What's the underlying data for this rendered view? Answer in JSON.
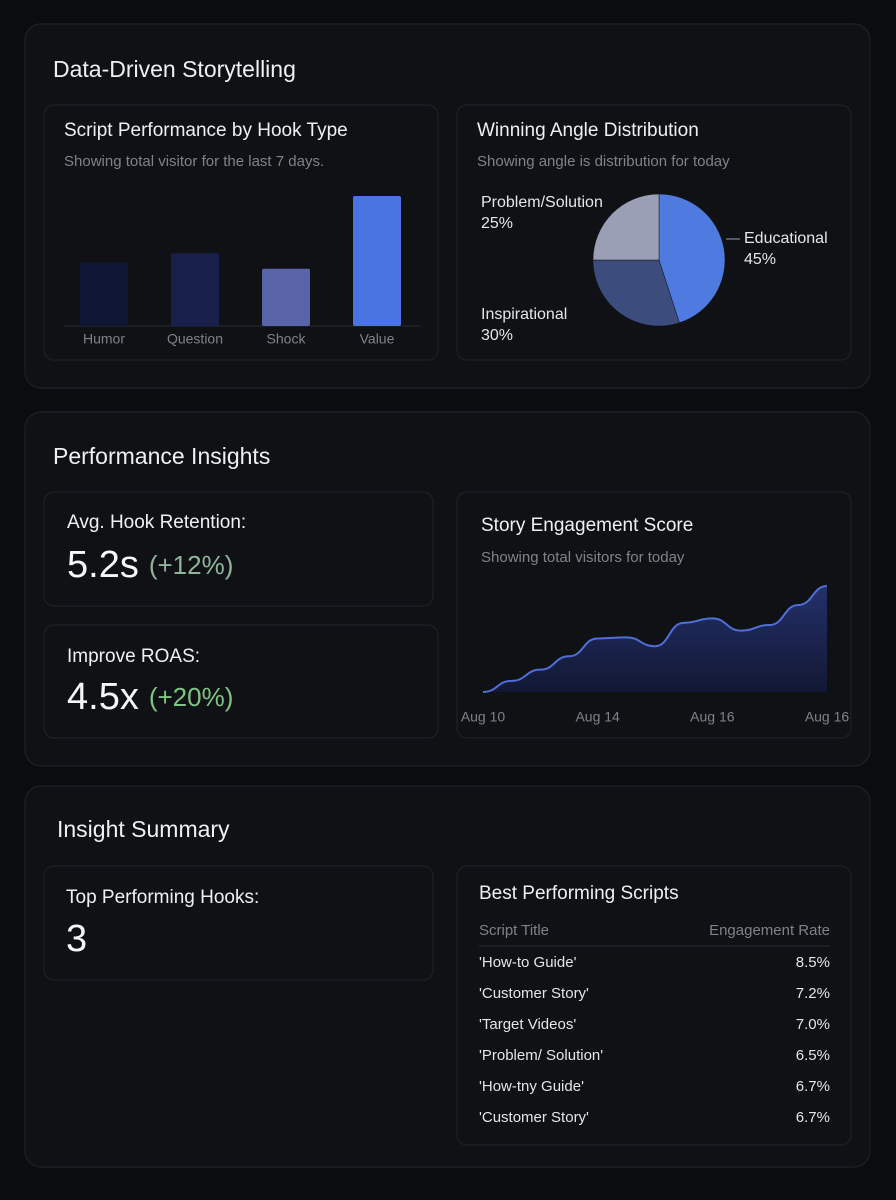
{
  "sections": [
    {
      "title": "Data-Driven Storytelling"
    },
    {
      "title": "Performance Insights"
    },
    {
      "title": "Insight Summary"
    }
  ],
  "chart_data": [
    {
      "type": "bar",
      "title": "Script Performance by Hook Type",
      "subtitle": "Showing total visitor for the last 7 days.",
      "categories": [
        "Humor",
        "Question",
        "Shock",
        "Value"
      ],
      "values": [
        49,
        56,
        44,
        100
      ],
      "colors": [
        "#0f1633",
        "#16204a",
        "#5a64a8",
        "#4a74e0"
      ]
    },
    {
      "type": "pie",
      "title": "Winning Angle Distribution",
      "subtitle": "Showing angle is distribution for today",
      "categories": [
        "Educational",
        "Inspirational",
        "Problem/Solution"
      ],
      "values": [
        45,
        30,
        25
      ],
      "value_labels": [
        "45%",
        "30%",
        "25%"
      ],
      "colors": [
        "#4f7be0",
        "#3c4c7c",
        "#9a9fb6"
      ]
    },
    {
      "type": "line",
      "title": "Story Engagement Score",
      "subtitle": "Showing total visitors for today",
      "categories": [
        "Aug 10",
        null,
        null,
        null,
        "Aug 14",
        null,
        null,
        null,
        "Aug 16",
        null,
        null,
        null,
        "Aug 16"
      ],
      "values": [
        0,
        10,
        20,
        32,
        48,
        49,
        41,
        62,
        66,
        55,
        60,
        78,
        95
      ],
      "color": "#4f6fd8"
    }
  ],
  "metrics": [
    {
      "label": "Avg. Hook Retention:",
      "value": "5.2s",
      "change": "(+12%)"
    },
    {
      "label": "Improve ROAS:",
      "value": "4.5x",
      "change": "(+20%)"
    },
    {
      "label": "Top Performing Hooks:",
      "value": "3"
    }
  ],
  "table": {
    "title": "Best Performing Scripts",
    "columns": [
      "Script Title",
      "Engagement Rate"
    ],
    "rows": [
      [
        "'How-to Guide'",
        "8.5%"
      ],
      [
        "'Customer Story'",
        "7.2%"
      ],
      [
        "'Target Videos'",
        "7.0%"
      ],
      [
        "'Problem/ Solution'",
        "6.5%"
      ],
      [
        "'How-tny Guide'",
        "6.7%"
      ],
      [
        "'Customer Story'",
        "6.7%"
      ]
    ]
  }
}
